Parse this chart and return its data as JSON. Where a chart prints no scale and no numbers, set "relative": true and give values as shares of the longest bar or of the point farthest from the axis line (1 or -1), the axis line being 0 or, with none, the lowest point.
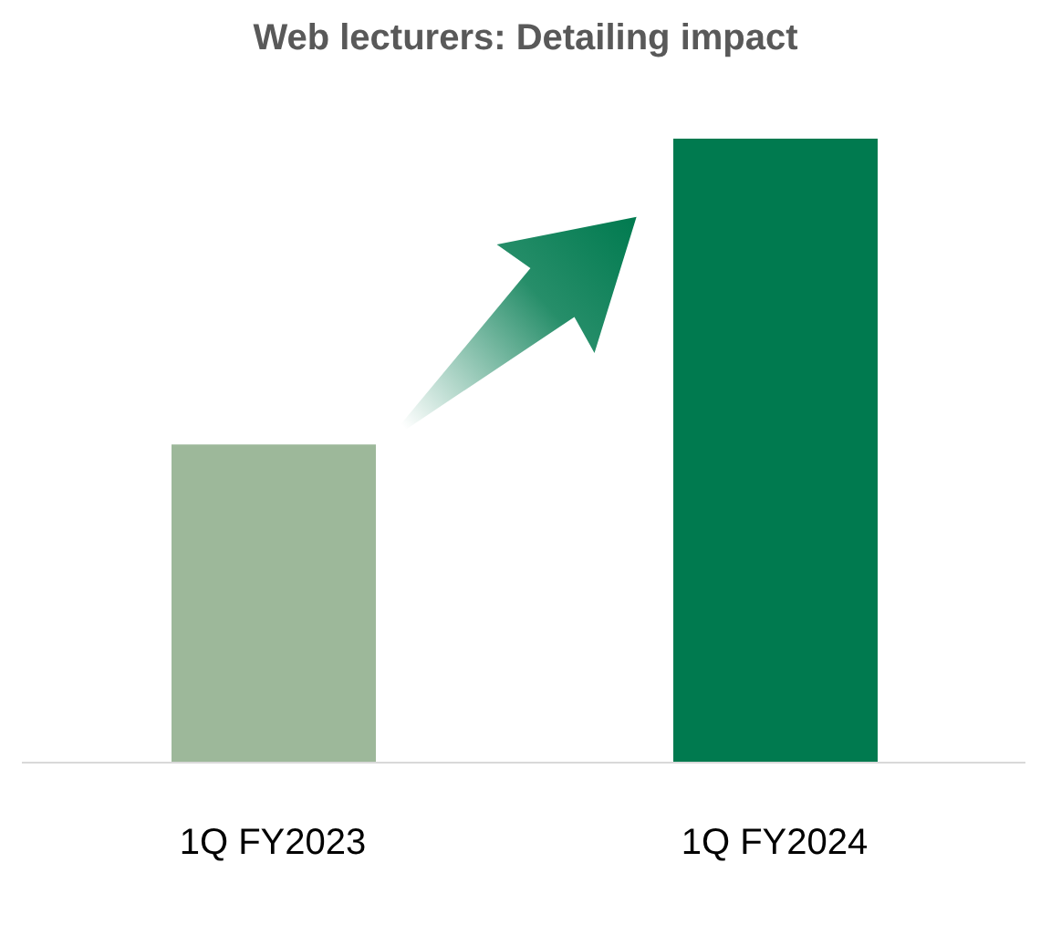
{
  "chart_data": {
    "type": "bar",
    "title": "Web lecturers: Detailing impact",
    "categories": [
      "1Q FY2023",
      "1Q FY2024"
    ],
    "values": [
      0.51,
      1
    ],
    "colors": [
      "#9db89a",
      "#007a4f"
    ],
    "relative": true
  }
}
